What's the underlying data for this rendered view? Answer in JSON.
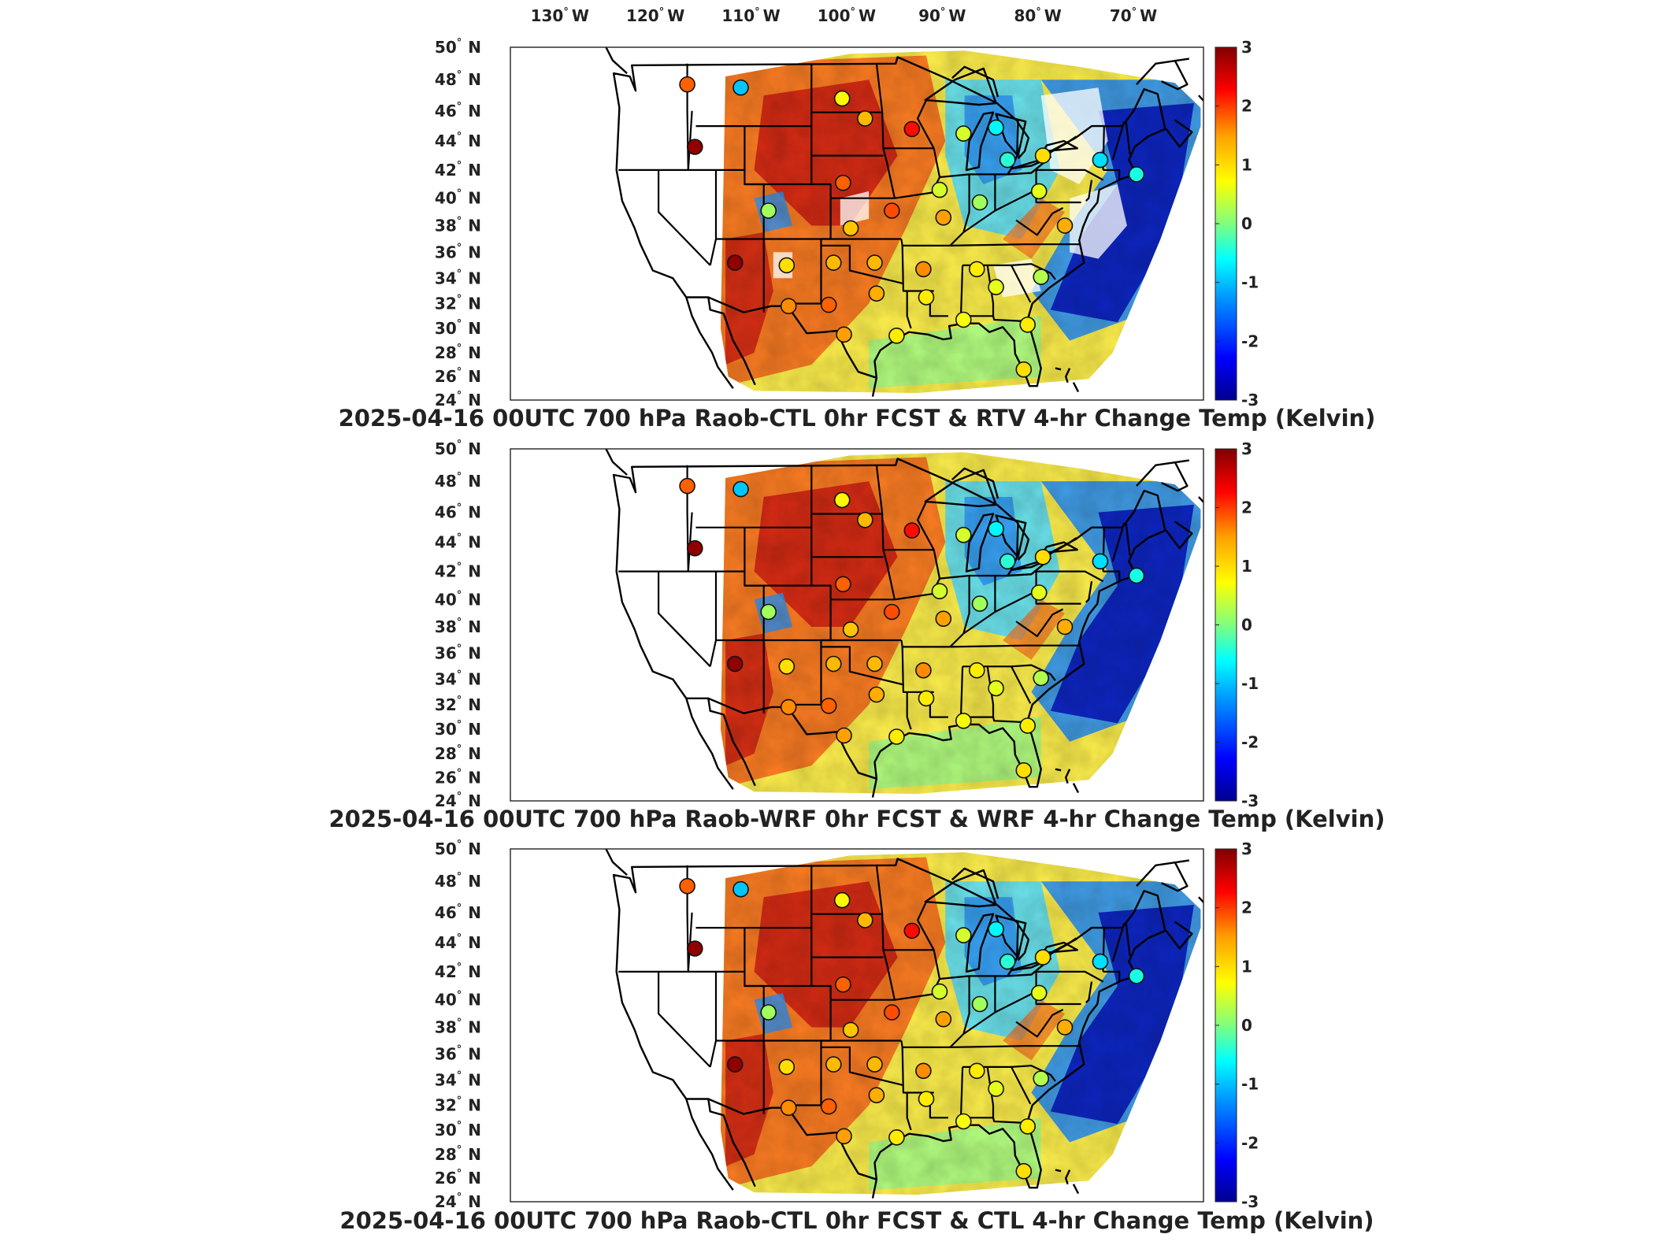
{
  "figure": {
    "lon_ticks": [
      "130",
      "120",
      "110",
      "100",
      "90",
      "80",
      "70"
    ],
    "lon_hemisphere": "W",
    "lat_ticks": [
      "50",
      "48",
      "46",
      "44",
      "42",
      "40",
      "38",
      "36",
      "34",
      "32",
      "30",
      "28",
      "26",
      "24"
    ],
    "lat_hemisphere": "N",
    "degree_symbol": "°",
    "colorbar_ticks": [
      "3",
      "2",
      "1",
      "0",
      "-1",
      "-2",
      "-3"
    ],
    "colormap": {
      "name": "jet",
      "min": -3,
      "max": 3,
      "stops": [
        "#00008f",
        "#0000ff",
        "#00a0ff",
        "#00ffff",
        "#7fff7f",
        "#ffff00",
        "#ffa000",
        "#ff0000",
        "#800000"
      ]
    },
    "domain_fill_colors": {
      "warm": "#f46d1e",
      "hot": "#c81c12",
      "neutral": "#f6e84a",
      "cool": "#2b8ff0",
      "cold": "#0b1fb8",
      "land_outside": "#ffffff"
    }
  },
  "panels": [
    {
      "title": "2025-04-16 00UTC 700 hPa Raob-CTL 0hr FCST & RTV 4-hr Change Temp (Kelvin)",
      "has_missing_gaps": true
    },
    {
      "title": "2025-04-16 00UTC 700 hPa Raob-WRF 0hr FCST & WRF 4-hr Change Temp (Kelvin)",
      "has_missing_gaps": false
    },
    {
      "title": "2025-04-16 00UTC 700 hPa Raob-CTL 0hr FCST & CTL 4-hr Change Temp (Kelvin)",
      "has_missing_gaps": false
    }
  ],
  "raob_stations": [
    {
      "lon": -117.0,
      "lat": 47.7,
      "value": 1.8
    },
    {
      "lon": -111.4,
      "lat": 47.5,
      "value": -1.2
    },
    {
      "lon": -100.8,
      "lat": 46.8,
      "value": 0.8
    },
    {
      "lon": -98.4,
      "lat": 45.5,
      "value": 1.3
    },
    {
      "lon": -93.5,
      "lat": 44.8,
      "value": 2.2
    },
    {
      "lon": -116.2,
      "lat": 43.6,
      "value": 2.9
    },
    {
      "lon": -84.7,
      "lat": 44.9,
      "value": -0.8
    },
    {
      "lon": -88.1,
      "lat": 44.5,
      "value": 0.5
    },
    {
      "lon": -83.5,
      "lat": 42.7,
      "value": -0.5
    },
    {
      "lon": -79.8,
      "lat": 43.0,
      "value": 1.0
    },
    {
      "lon": -73.8,
      "lat": 42.7,
      "value": -1.0
    },
    {
      "lon": -70.0,
      "lat": 41.7,
      "value": -0.6
    },
    {
      "lon": -100.7,
      "lat": 41.1,
      "value": 1.8
    },
    {
      "lon": -90.6,
      "lat": 40.6,
      "value": 0.5
    },
    {
      "lon": -86.4,
      "lat": 39.7,
      "value": 0.2
    },
    {
      "lon": -80.2,
      "lat": 40.5,
      "value": 0.6
    },
    {
      "lon": -108.5,
      "lat": 39.1,
      "value": 0.2
    },
    {
      "lon": -99.9,
      "lat": 37.8,
      "value": 1.2
    },
    {
      "lon": -95.6,
      "lat": 39.1,
      "value": 1.9
    },
    {
      "lon": -90.2,
      "lat": 38.6,
      "value": 1.5
    },
    {
      "lon": -77.5,
      "lat": 38.0,
      "value": 1.4
    },
    {
      "lon": -112.0,
      "lat": 35.2,
      "value": 2.9
    },
    {
      "lon": -106.6,
      "lat": 35.0,
      "value": 1.0
    },
    {
      "lon": -101.7,
      "lat": 35.2,
      "value": 1.3
    },
    {
      "lon": -97.4,
      "lat": 35.2,
      "value": 1.3
    },
    {
      "lon": -92.3,
      "lat": 34.7,
      "value": 1.6
    },
    {
      "lon": -86.7,
      "lat": 34.7,
      "value": 0.9
    },
    {
      "lon": -80.0,
      "lat": 34.1,
      "value": 0.3
    },
    {
      "lon": -84.7,
      "lat": 33.3,
      "value": 0.6
    },
    {
      "lon": -106.4,
      "lat": 31.8,
      "value": 1.6
    },
    {
      "lon": -102.2,
      "lat": 31.9,
      "value": 1.8
    },
    {
      "lon": -97.2,
      "lat": 32.8,
      "value": 1.4
    },
    {
      "lon": -92.0,
      "lat": 32.5,
      "value": 0.9
    },
    {
      "lon": -88.1,
      "lat": 30.7,
      "value": 0.7
    },
    {
      "lon": -81.4,
      "lat": 30.3,
      "value": 0.9
    },
    {
      "lon": -100.6,
      "lat": 29.5,
      "value": 1.5
    },
    {
      "lon": -95.1,
      "lat": 29.4,
      "value": 0.9
    },
    {
      "lon": -81.8,
      "lat": 26.6,
      "value": 1.0
    }
  ]
}
